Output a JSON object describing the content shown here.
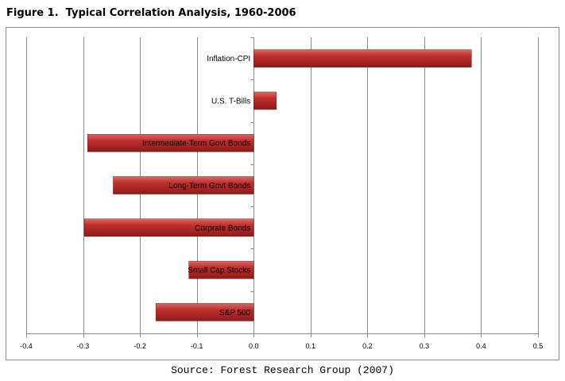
{
  "figure": {
    "title": "Figure 1.  Typical Correlation Analysis, 1960-2006",
    "source": "Source: Forest Research Group (2007)"
  },
  "chart_data": {
    "type": "bar",
    "orientation": "horizontal",
    "title": "",
    "xlabel": "",
    "ylabel": "",
    "xlim": [
      -0.4,
      0.5
    ],
    "xticks": [
      -0.4,
      -0.3,
      -0.2,
      -0.1,
      0.0,
      0.1,
      0.2,
      0.3,
      0.4,
      0.5
    ],
    "tick_labels": [
      "-0.4",
      "-0.3",
      "-0.2",
      "-0.1",
      "0.0",
      "0.1",
      "0.2",
      "0.3",
      "0.4",
      "0.5"
    ],
    "grid": true,
    "legend": "none",
    "bar_color": "#b22222",
    "categories": [
      "Inflation-CPI",
      "U.S. T-Bills",
      "Intermediate-Term Govt Bonds",
      "Long-Term Govt Bonds",
      "Corprate Bonds",
      "Small Cap Stocks",
      "S&P 500"
    ],
    "values": [
      0.383,
      0.04,
      -0.292,
      -0.247,
      -0.298,
      -0.114,
      -0.172
    ]
  }
}
